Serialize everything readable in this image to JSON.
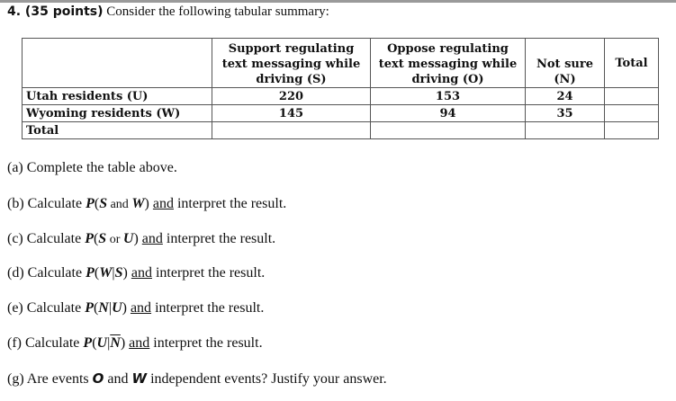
{
  "heading": {
    "number": "4. (35 points)",
    "text": " Consider the following tabular summary:"
  },
  "table": {
    "headers": [
      "",
      "Support regulating text messaging while driving (S)",
      "Oppose regulating text messaging while driving (O)",
      "Not sure (N)",
      "Total"
    ],
    "rows": [
      [
        "Utah residents (U)",
        "220",
        "153",
        "24",
        ""
      ],
      [
        "Wyoming residents (W)",
        "145",
        "94",
        "35",
        ""
      ],
      [
        "Total",
        "",
        "",
        "",
        ""
      ]
    ]
  },
  "questions": [
    {
      "label": "(a)",
      "parts": [
        {
          "t": " Complete the table above.",
          "s": ""
        }
      ]
    },
    {
      "label": "(b)",
      "parts": [
        {
          "t": " Calculate ",
          "s": ""
        },
        {
          "t": "P",
          "s": "m"
        },
        {
          "t": "(",
          "s": ""
        },
        {
          "t": "S",
          "s": "m"
        },
        {
          "t": " and ",
          "s": "mr"
        },
        {
          "t": "W",
          "s": "m"
        },
        {
          "t": ")",
          "s": ""
        },
        {
          "t": " ",
          "s": ""
        },
        {
          "t": "and",
          "s": "u"
        },
        {
          "t": " interpret the result.",
          "s": ""
        }
      ]
    },
    {
      "label": "(c)",
      "parts": [
        {
          "t": " Calculate ",
          "s": ""
        },
        {
          "t": "P",
          "s": "m"
        },
        {
          "t": "(",
          "s": ""
        },
        {
          "t": "S",
          "s": "m"
        },
        {
          "t": " or ",
          "s": "mr"
        },
        {
          "t": "U",
          "s": "m"
        },
        {
          "t": ")",
          "s": ""
        },
        {
          "t": " ",
          "s": ""
        },
        {
          "t": "and",
          "s": "u"
        },
        {
          "t": " interpret the result.",
          "s": ""
        }
      ]
    },
    {
      "label": "(d)",
      "parts": [
        {
          "t": " Calculate ",
          "s": ""
        },
        {
          "t": "P",
          "s": "m"
        },
        {
          "t": "(",
          "s": ""
        },
        {
          "t": "W",
          "s": "m"
        },
        {
          "t": "|",
          "s": ""
        },
        {
          "t": "S",
          "s": "m"
        },
        {
          "t": ")",
          "s": ""
        },
        {
          "t": " ",
          "s": ""
        },
        {
          "t": "and",
          "s": "u"
        },
        {
          "t": " interpret the result.",
          "s": ""
        }
      ]
    },
    {
      "label": "(e)",
      "parts": [
        {
          "t": " Calculate ",
          "s": ""
        },
        {
          "t": "P",
          "s": "m"
        },
        {
          "t": "(",
          "s": ""
        },
        {
          "t": "N",
          "s": "m"
        },
        {
          "t": "|",
          "s": ""
        },
        {
          "t": "U",
          "s": "m"
        },
        {
          "t": ")",
          "s": ""
        },
        {
          "t": " ",
          "s": ""
        },
        {
          "t": "and",
          "s": "u"
        },
        {
          "t": " interpret the result.",
          "s": ""
        }
      ]
    },
    {
      "label": "(f)",
      "parts": [
        {
          "t": " Calculate ",
          "s": ""
        },
        {
          "t": "P",
          "s": "m"
        },
        {
          "t": "(",
          "s": ""
        },
        {
          "t": "U",
          "s": "m"
        },
        {
          "t": "|",
          "s": ""
        },
        {
          "t": "N",
          "s": "m ov"
        },
        {
          "t": ")",
          "s": ""
        },
        {
          "t": " ",
          "s": ""
        },
        {
          "t": "and",
          "s": "u"
        },
        {
          "t": " interpret the result.",
          "s": ""
        }
      ]
    },
    {
      "label": "(g)",
      "parts": [
        {
          "t": " Are events ",
          "s": ""
        },
        {
          "t": "O",
          "s": "sansi"
        },
        {
          "t": " and ",
          "s": ""
        },
        {
          "t": "W",
          "s": "sansi"
        },
        {
          "t": " independent events? Justify your answer.",
          "s": ""
        }
      ]
    }
  ]
}
